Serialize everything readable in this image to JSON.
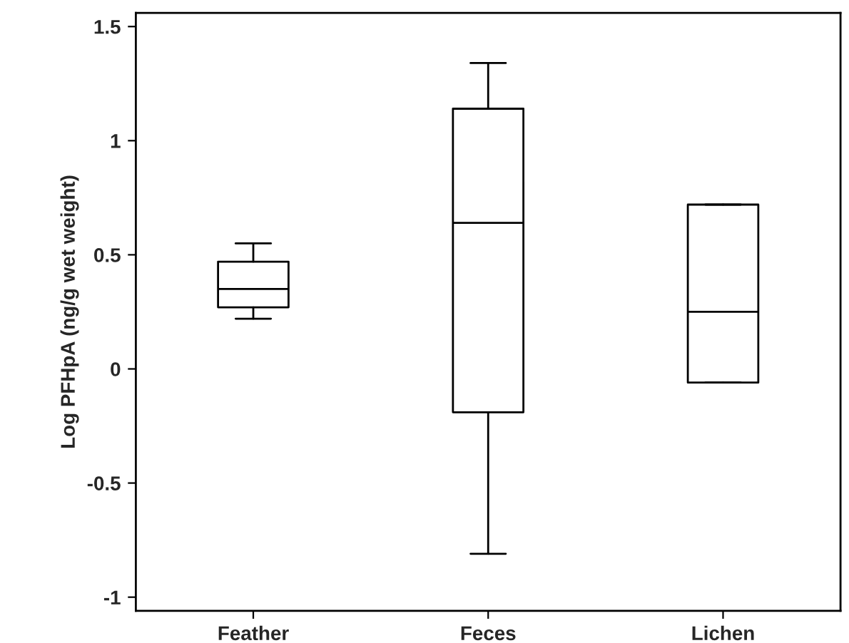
{
  "chart_data": {
    "type": "box",
    "ylabel": "Log PFHpA (ng/g wet weight)",
    "categories": [
      "Feather",
      "Feces",
      "Lichen"
    ],
    "boxes": [
      {
        "low": 0.22,
        "q1": 0.27,
        "median": 0.35,
        "q3": 0.47,
        "high": 0.55
      },
      {
        "low": -0.81,
        "q1": -0.19,
        "median": 0.64,
        "q3": 1.14,
        "high": 1.34
      },
      {
        "low": -0.06,
        "q1": -0.06,
        "median": 0.25,
        "q3": 0.72,
        "high": 0.72
      }
    ],
    "color": "#000000",
    "ylim": [
      -1.06,
      1.56
    ],
    "yticks": [
      -1,
      -0.5,
      0,
      0.5,
      1,
      1.5
    ],
    "grid": false
  }
}
